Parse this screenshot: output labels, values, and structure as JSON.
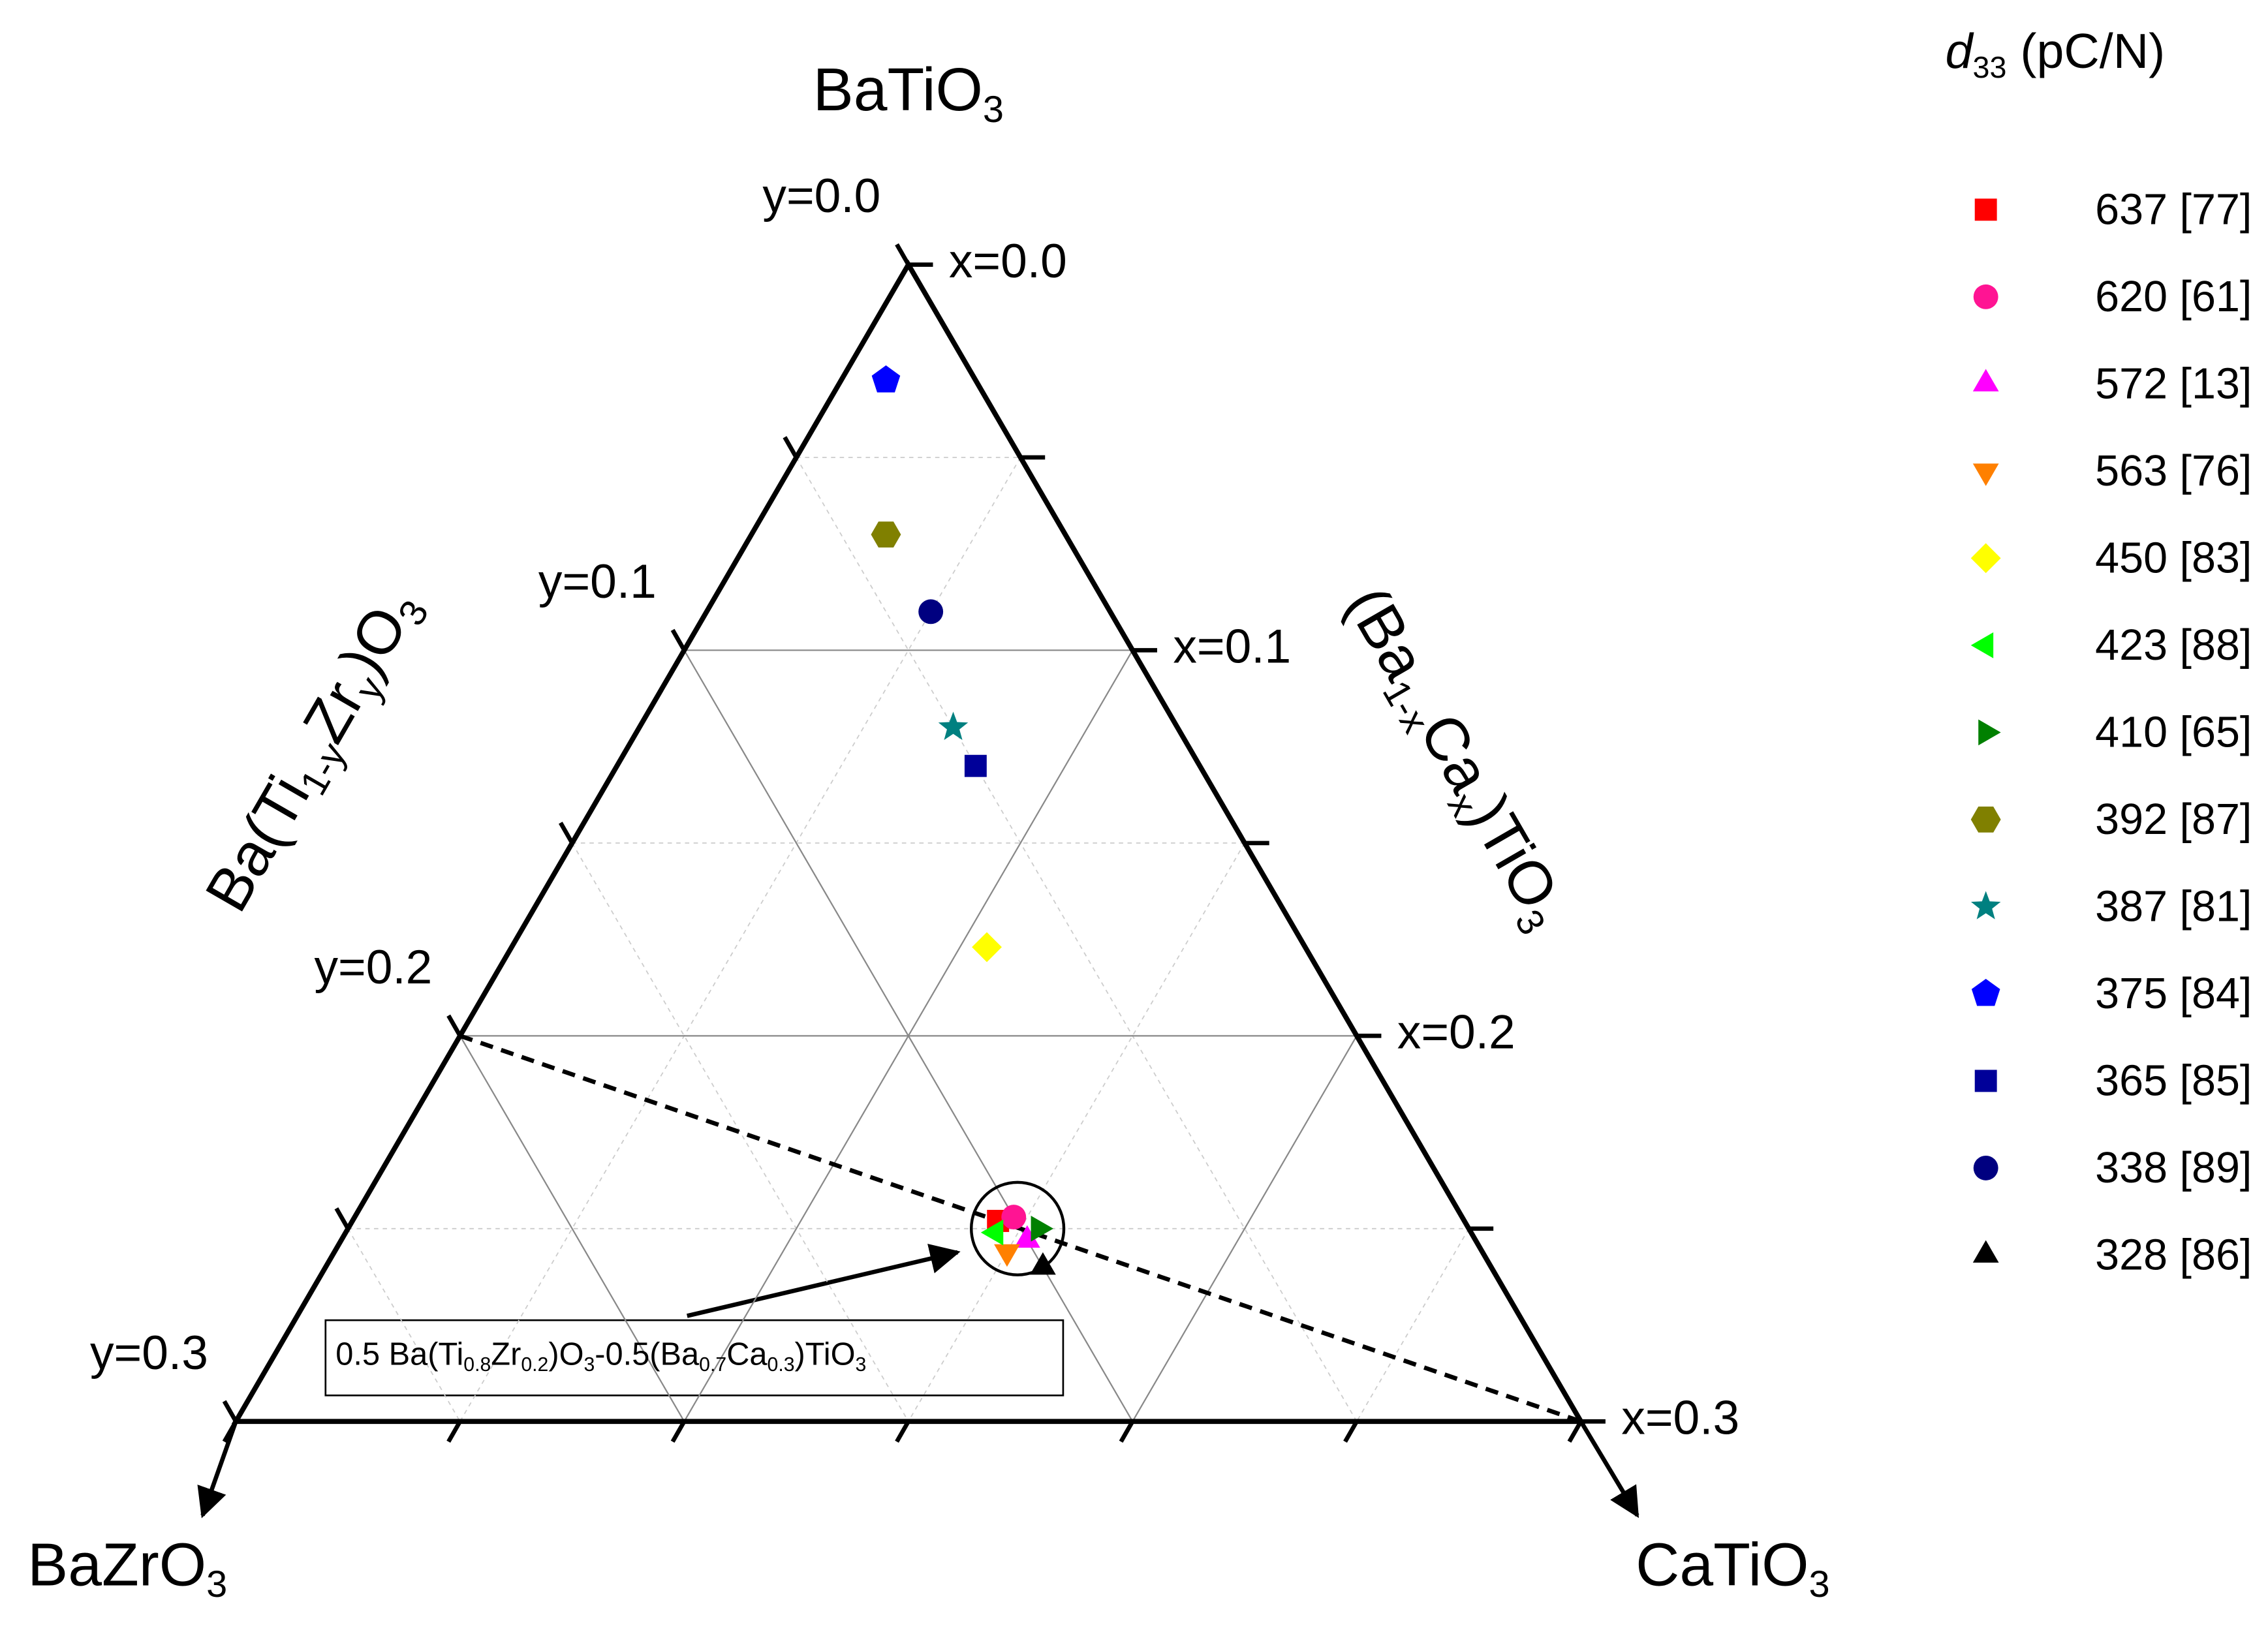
{
  "chart_data": {
    "type": "ternary",
    "vertex_labels": {
      "top": [
        "BaTiO",
        "3"
      ],
      "left": [
        "BaZrO",
        "3"
      ],
      "right": [
        "CaTiO",
        "3"
      ]
    },
    "y_axis_label": [
      "Ba(Ti",
      "1-y",
      "Zr",
      "y",
      ")O",
      "3"
    ],
    "x_axis_label": [
      "(Ba",
      "1-x",
      "Ca",
      "x",
      ")TiO",
      "3"
    ],
    "legend_title": [
      "d",
      "33",
      " (pC/N)"
    ],
    "xlim": [
      0,
      0.3
    ],
    "ylim": [
      0,
      0.3
    ],
    "xticks": [
      {
        "value": 0,
        "label": "x=0.0"
      },
      {
        "value": 0.1,
        "label": "x=0.1"
      },
      {
        "value": 0.2,
        "label": "x=0.2"
      },
      {
        "value": 0.3,
        "label": "x=0.3"
      }
    ],
    "yticks": [
      {
        "value": 0,
        "label": "y=0.0"
      },
      {
        "value": 0.1,
        "label": "y=0.1"
      },
      {
        "value": 0.2,
        "label": "y=0.2"
      },
      {
        "value": 0.3,
        "label": "y=0.3"
      }
    ],
    "minor_ticks": [
      0.05,
      0.15,
      0.25
    ],
    "grid": true,
    "tie_line": {
      "from": {
        "x": 0,
        "y": 0.2
      },
      "to": {
        "x": 0.3,
        "y": 0
      }
    },
    "highlight": {
      "x": 0.15,
      "y": 0.1
    },
    "annotation": [
      "0.5 Ba(Ti",
      "0.8",
      "Zr",
      "0.2",
      ")O",
      "3",
      "-0.5(Ba",
      "0.7",
      "Ca",
      "0.3",
      ")TiO",
      "3"
    ],
    "series": [
      {
        "name": "637 [77]",
        "color": "#ff0000",
        "marker": "square",
        "x": 0.144,
        "y": 0.104
      },
      {
        "name": "620 [61]",
        "color": "#ff1493",
        "marker": "circle",
        "x": 0.147,
        "y": 0.1
      },
      {
        "name": "572 [13]",
        "color": "#ff00ff",
        "marker": "triangle-up",
        "x": 0.153,
        "y": 0.1
      },
      {
        "name": "563 [76]",
        "color": "#ff8000",
        "marker": "triangle-down",
        "x": 0.15,
        "y": 0.106
      },
      {
        "name": "450 [83]",
        "color": "#ffff00",
        "marker": "diamond",
        "x": 0.106,
        "y": 0.071
      },
      {
        "name": "423 [88]",
        "color": "#00ff00",
        "marker": "triangle-left",
        "x": 0.145,
        "y": 0.106
      },
      {
        "name": "410 [65]",
        "color": "#008000",
        "marker": "triangle-right",
        "x": 0.154,
        "y": 0.096
      },
      {
        "name": "392 [87]",
        "color": "#808000",
        "marker": "hexagon",
        "x": 0.03,
        "y": 0.04
      },
      {
        "name": "387 [81]",
        "color": "#008080",
        "marker": "star",
        "x": 0.07,
        "y": 0.05
      },
      {
        "name": "375 [84]",
        "color": "#0000ff",
        "marker": "pentagon",
        "x": 0.01,
        "y": 0.02
      },
      {
        "name": "365 [85]",
        "color": "#000099",
        "marker": "square",
        "x": 0.08,
        "y": 0.05
      },
      {
        "name": "338 [89]",
        "color": "#000080",
        "marker": "circle",
        "x": 0.05,
        "y": 0.04
      },
      {
        "name": "328 [86]",
        "color": "#000000",
        "marker": "triangle-up",
        "x": 0.16,
        "y": 0.1
      }
    ]
  }
}
